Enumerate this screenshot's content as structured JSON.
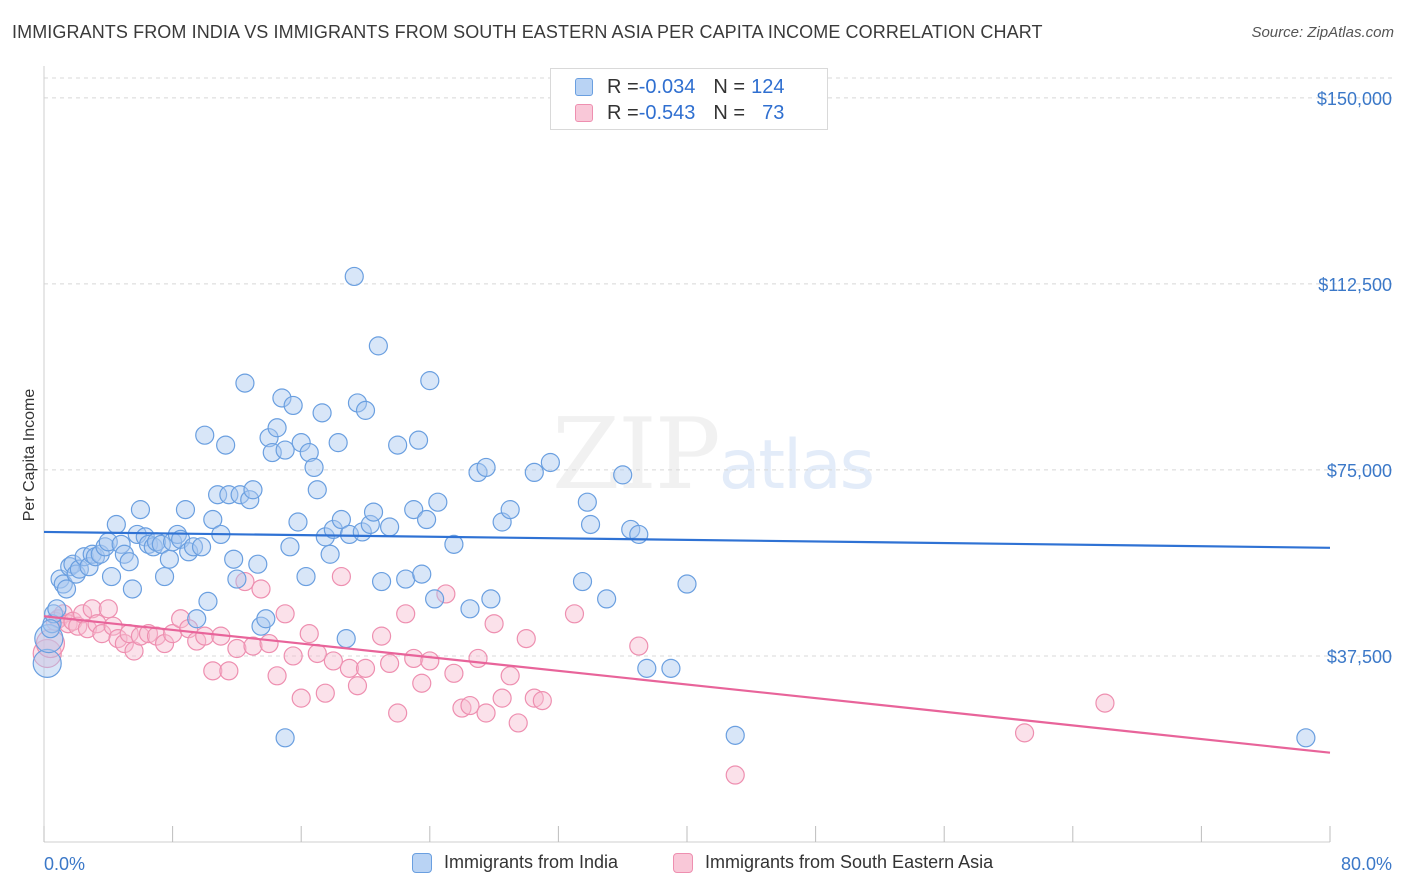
{
  "header": {
    "title": "IMMIGRANTS FROM INDIA VS IMMIGRANTS FROM SOUTH EASTERN ASIA PER CAPITA INCOME CORRELATION CHART",
    "source": "Source: ZipAtlas.com"
  },
  "watermark": {
    "zip": "ZIP",
    "atlas": "atlas"
  },
  "legend": {
    "india": {
      "r_label": "R = ",
      "r_value": "-0.034",
      "n_label": "N = ",
      "n_value": "124"
    },
    "sea": {
      "r_label": "R = ",
      "r_value": "-0.543",
      "n_label": "N = ",
      "n_value": "73"
    }
  },
  "colors": {
    "india_fill": "#a9c8f0",
    "india_stroke": "#6a9fe0",
    "india_line": "#2f72d4",
    "sea_fill": "#f7bcd0",
    "sea_stroke": "#ee8fb0",
    "sea_line": "#e8649a",
    "grid": "#d8d8d8",
    "tick_text": "#3b78c8"
  },
  "chart_data": {
    "type": "scatter",
    "title": "IMMIGRANTS FROM INDIA VS IMMIGRANTS FROM SOUTH EASTERN ASIA PER CAPITA INCOME CORRELATION CHART",
    "xlabel": "",
    "ylabel": "Per Capita Income",
    "xlim": [
      0,
      80
    ],
    "ylim": [
      0,
      154000
    ],
    "x_tick_labels": [
      "0.0%",
      "80.0%"
    ],
    "y_ticks": [
      37500,
      75000,
      112500,
      150000
    ],
    "y_tick_labels": [
      "$37,500",
      "$75,000",
      "$112,500",
      "$150,000"
    ],
    "grid": true,
    "legend_position": "top-center",
    "series": [
      {
        "name": "Immigrants from India",
        "trend": {
          "x": [
            0,
            80
          ],
          "y": [
            62500,
            59300
          ]
        },
        "points": [
          [
            0.2,
            36000
          ],
          [
            0.3,
            41000
          ],
          [
            0.5,
            44000
          ],
          [
            0.6,
            46000
          ],
          [
            0.8,
            47000
          ],
          [
            1.0,
            53000
          ],
          [
            1.2,
            52000
          ],
          [
            1.4,
            51000
          ],
          [
            1.6,
            55500
          ],
          [
            1.8,
            56000
          ],
          [
            2.0,
            54000
          ],
          [
            2.2,
            55000
          ],
          [
            2.5,
            57500
          ],
          [
            2.8,
            55500
          ],
          [
            3.0,
            58000
          ],
          [
            3.2,
            57500
          ],
          [
            3.5,
            58000
          ],
          [
            3.8,
            59500
          ],
          [
            4.0,
            60500
          ],
          [
            4.2,
            53500
          ],
          [
            4.5,
            64000
          ],
          [
            4.8,
            60000
          ],
          [
            5.0,
            58000
          ],
          [
            5.3,
            56500
          ],
          [
            5.5,
            51000
          ],
          [
            5.8,
            62000
          ],
          [
            6.0,
            67000
          ],
          [
            6.3,
            61500
          ],
          [
            6.5,
            60000
          ],
          [
            6.8,
            59500
          ],
          [
            7.0,
            60500
          ],
          [
            7.3,
            60000
          ],
          [
            7.5,
            53500
          ],
          [
            7.8,
            57000
          ],
          [
            8.0,
            60500
          ],
          [
            8.3,
            62000
          ],
          [
            8.5,
            61000
          ],
          [
            8.8,
            67000
          ],
          [
            9.0,
            58500
          ],
          [
            9.3,
            59500
          ],
          [
            9.5,
            45000
          ],
          [
            9.8,
            59500
          ],
          [
            10.0,
            82000
          ],
          [
            10.2,
            48500
          ],
          [
            10.5,
            65000
          ],
          [
            10.8,
            70000
          ],
          [
            11.0,
            62000
          ],
          [
            11.3,
            80000
          ],
          [
            11.5,
            70000
          ],
          [
            11.8,
            57000
          ],
          [
            12.0,
            53000
          ],
          [
            12.2,
            70000
          ],
          [
            12.5,
            92500
          ],
          [
            12.8,
            69000
          ],
          [
            13.0,
            71000
          ],
          [
            13.3,
            56000
          ],
          [
            13.5,
            43500
          ],
          [
            13.8,
            45000
          ],
          [
            14.0,
            81500
          ],
          [
            14.2,
            78500
          ],
          [
            14.5,
            83500
          ],
          [
            14.8,
            89500
          ],
          [
            15.0,
            79000
          ],
          [
            15.3,
            59500
          ],
          [
            15.5,
            88000
          ],
          [
            15.8,
            64500
          ],
          [
            16.0,
            80500
          ],
          [
            16.3,
            53500
          ],
          [
            16.5,
            78500
          ],
          [
            16.8,
            75500
          ],
          [
            17.0,
            71000
          ],
          [
            17.3,
            86500
          ],
          [
            17.5,
            61500
          ],
          [
            17.8,
            58000
          ],
          [
            18.0,
            63000
          ],
          [
            18.3,
            80500
          ],
          [
            18.5,
            65000
          ],
          [
            18.8,
            41000
          ],
          [
            19.0,
            62000
          ],
          [
            19.3,
            114000
          ],
          [
            19.5,
            88500
          ],
          [
            19.8,
            62500
          ],
          [
            20.0,
            87000
          ],
          [
            20.3,
            64000
          ],
          [
            20.5,
            66500
          ],
          [
            20.8,
            100000
          ],
          [
            21.0,
            52500
          ],
          [
            21.5,
            63500
          ],
          [
            22.0,
            80000
          ],
          [
            22.5,
            53000
          ],
          [
            23.0,
            67000
          ],
          [
            23.3,
            81000
          ],
          [
            23.5,
            54000
          ],
          [
            23.8,
            65000
          ],
          [
            24.0,
            93000
          ],
          [
            24.3,
            49000
          ],
          [
            24.5,
            68500
          ],
          [
            25.5,
            60000
          ],
          [
            26.5,
            47000
          ],
          [
            27.0,
            74500
          ],
          [
            27.5,
            75500
          ],
          [
            27.8,
            49000
          ],
          [
            28.5,
            64500
          ],
          [
            29.0,
            67000
          ],
          [
            30.5,
            74500
          ],
          [
            31.5,
            76500
          ],
          [
            33.5,
            52500
          ],
          [
            33.8,
            68500
          ],
          [
            34.0,
            64000
          ],
          [
            35.0,
            49000
          ],
          [
            36.0,
            74000
          ],
          [
            36.5,
            63000
          ],
          [
            37.0,
            62000
          ],
          [
            37.5,
            35000
          ],
          [
            39.0,
            35000
          ],
          [
            40.0,
            52000
          ],
          [
            43.0,
            21500
          ],
          [
            15.0,
            21000
          ],
          [
            78.5,
            21000
          ],
          [
            0.4,
            43000
          ]
        ]
      },
      {
        "name": "Immigrants from South Eastern Asia",
        "trend": {
          "x": [
            0,
            80
          ],
          "y": [
            45500,
            18000
          ]
        },
        "points": [
          [
            0.2,
            38000
          ],
          [
            0.4,
            40000
          ],
          [
            0.7,
            44500
          ],
          [
            0.9,
            45000
          ],
          [
            1.2,
            46000
          ],
          [
            1.5,
            44000
          ],
          [
            1.8,
            44500
          ],
          [
            2.1,
            43500
          ],
          [
            2.4,
            46000
          ],
          [
            2.7,
            43000
          ],
          [
            3.0,
            47000
          ],
          [
            3.3,
            44000
          ],
          [
            3.6,
            42000
          ],
          [
            4.0,
            47000
          ],
          [
            4.3,
            43500
          ],
          [
            4.6,
            41000
          ],
          [
            5.0,
            40000
          ],
          [
            5.3,
            42000
          ],
          [
            5.6,
            38500
          ],
          [
            6.0,
            41500
          ],
          [
            6.5,
            42000
          ],
          [
            7.0,
            41500
          ],
          [
            7.5,
            40000
          ],
          [
            8.0,
            42000
          ],
          [
            8.5,
            45000
          ],
          [
            9.0,
            43000
          ],
          [
            9.5,
            40500
          ],
          [
            10.0,
            41500
          ],
          [
            10.5,
            34500
          ],
          [
            11.0,
            41500
          ],
          [
            11.5,
            34500
          ],
          [
            12.0,
            39000
          ],
          [
            12.5,
            52500
          ],
          [
            13.0,
            39500
          ],
          [
            13.5,
            51000
          ],
          [
            14.0,
            40000
          ],
          [
            14.5,
            33500
          ],
          [
            15.0,
            46000
          ],
          [
            15.5,
            37500
          ],
          [
            16.0,
            29000
          ],
          [
            16.5,
            42000
          ],
          [
            17.0,
            38000
          ],
          [
            17.5,
            30000
          ],
          [
            18.0,
            36500
          ],
          [
            18.5,
            53500
          ],
          [
            19.0,
            35000
          ],
          [
            19.5,
            31500
          ],
          [
            20.0,
            35000
          ],
          [
            21.0,
            41500
          ],
          [
            21.5,
            36000
          ],
          [
            22.0,
            26000
          ],
          [
            22.5,
            46000
          ],
          [
            23.0,
            37000
          ],
          [
            23.5,
            32000
          ],
          [
            24.0,
            36500
          ],
          [
            25.0,
            50000
          ],
          [
            25.5,
            34000
          ],
          [
            26.0,
            27000
          ],
          [
            26.5,
            27500
          ],
          [
            27.0,
            37000
          ],
          [
            27.5,
            26000
          ],
          [
            28.0,
            44000
          ],
          [
            28.5,
            29000
          ],
          [
            29.0,
            33500
          ],
          [
            29.5,
            24000
          ],
          [
            30.0,
            41000
          ],
          [
            30.5,
            29000
          ],
          [
            31.0,
            28500
          ],
          [
            33.0,
            46000
          ],
          [
            37.0,
            39500
          ],
          [
            43.0,
            13500
          ],
          [
            61.0,
            22000
          ],
          [
            66.0,
            28000
          ]
        ]
      }
    ]
  }
}
